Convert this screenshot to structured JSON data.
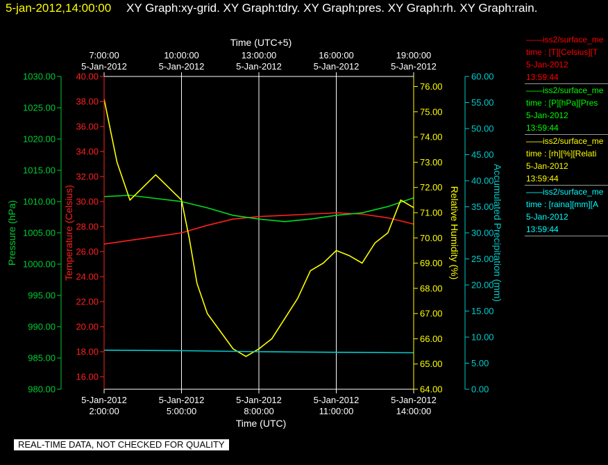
{
  "header": {
    "timestamp": "5-jan-2012,14:00:00",
    "titles": "XY Graph:xy-grid.  XY Graph:tdry.  XY Graph:pres.  XY Graph:rh.  XY Graph:rain."
  },
  "legend": [
    {
      "line1": "iss2/surface_me",
      "line2": "time : [T][Celsius][T",
      "line3": "5-Jan-2012",
      "line4": "13:59:44",
      "color": "#ff0000"
    },
    {
      "line1": "iss2/surface_me",
      "line2": "time : [P][hPa][Pres",
      "line3": "5-Jan-2012",
      "line4": "13:59:44",
      "color": "#00ff00"
    },
    {
      "line1": "iss2/surface_me",
      "line2": "time : [rh][%][Relati",
      "line3": "5-Jan-2012",
      "line4": "13:59:44",
      "color": "#ffff00"
    },
    {
      "line1": "iss2/surface_me",
      "line2": "time : [raina][mm][A",
      "line3": "5-Jan-2012",
      "line4": "13:59:44",
      "color": "#00ffff"
    }
  ],
  "footer": "REAL-TIME DATA, NOT CHECKED FOR QUALITY",
  "chart_data": {
    "type": "line",
    "title": "",
    "x_axis_bottom": {
      "label": "Time (UTC)",
      "ticks": [
        {
          "date": "5-Jan-2012",
          "time": "2:00:00"
        },
        {
          "date": "5-Jan-2012",
          "time": "5:00:00"
        },
        {
          "date": "5-Jan-2012",
          "time": "8:00:00"
        },
        {
          "date": "5-Jan-2012",
          "time": "11:00:00"
        },
        {
          "date": "5-Jan-2012",
          "time": "14:00:00"
        }
      ]
    },
    "x_axis_top": {
      "label": "Time (UTC+5)",
      "ticks": [
        {
          "time": "7:00:00",
          "date": "5-Jan-2012"
        },
        {
          "time": "10:00:00",
          "date": "5-Jan-2012"
        },
        {
          "time": "13:00:00",
          "date": "5-Jan-2012"
        },
        {
          "time": "16:00:00",
          "date": "5-Jan-2012"
        },
        {
          "time": "19:00:00",
          "date": "5-Jan-2012"
        }
      ]
    },
    "x_range_hours": [
      2,
      14
    ],
    "grid": true,
    "axes": [
      {
        "id": "pres",
        "label": "Pressure (hPa)",
        "color": "#00cc33",
        "min": 980,
        "max": 1030,
        "step": 5,
        "decimals": 2
      },
      {
        "id": "temp",
        "label": "Temperature (Celsius)",
        "color": "#ff2020",
        "min": 15,
        "max": 40,
        "step": 2,
        "first": 16,
        "decimals": 2
      },
      {
        "id": "rh",
        "label": "Relative Humidity (%)",
        "color": "#ffff00",
        "min": 64,
        "max": 76.4,
        "step": 1,
        "first": 64,
        "last": 76,
        "decimals": 2
      },
      {
        "id": "rain",
        "label": "Accumulated Precipitation (mm)",
        "color": "#00cccc",
        "min": 0,
        "max": 60,
        "step": 5,
        "decimals": 2
      }
    ],
    "series": [
      {
        "axis": "temp",
        "color": "#ff2020",
        "points": [
          [
            2.0,
            26.6
          ],
          [
            3.0,
            26.9
          ],
          [
            4.0,
            27.2
          ],
          [
            5.0,
            27.5
          ],
          [
            6.0,
            28.1
          ],
          [
            7.0,
            28.6
          ],
          [
            8.0,
            28.8
          ],
          [
            9.0,
            28.9
          ],
          [
            10.0,
            29.0
          ],
          [
            11.0,
            29.1
          ],
          [
            12.0,
            29.0
          ],
          [
            13.0,
            28.7
          ],
          [
            14.0,
            28.2
          ]
        ]
      },
      {
        "axis": "pres",
        "color": "#00dd22",
        "points": [
          [
            2.0,
            1010.8
          ],
          [
            3.0,
            1011.0
          ],
          [
            4.0,
            1010.5
          ],
          [
            5.0,
            1010.0
          ],
          [
            6.0,
            1009.0
          ],
          [
            7.0,
            1007.8
          ],
          [
            8.0,
            1007.2
          ],
          [
            9.0,
            1006.8
          ],
          [
            10.0,
            1007.2
          ],
          [
            11.0,
            1007.8
          ],
          [
            12.0,
            1008.2
          ],
          [
            13.0,
            1009.2
          ],
          [
            14.0,
            1010.6
          ]
        ]
      },
      {
        "axis": "rh",
        "color": "#ffff00",
        "points": [
          [
            2.0,
            75.5
          ],
          [
            2.5,
            73.0
          ],
          [
            3.0,
            71.5
          ],
          [
            3.5,
            72.0
          ],
          [
            4.0,
            72.5
          ],
          [
            4.5,
            72.0
          ],
          [
            5.0,
            71.5
          ],
          [
            5.3,
            70.0
          ],
          [
            5.6,
            68.2
          ],
          [
            6.0,
            67.0
          ],
          [
            6.5,
            66.3
          ],
          [
            7.0,
            65.6
          ],
          [
            7.5,
            65.3
          ],
          [
            8.0,
            65.6
          ],
          [
            8.5,
            66.0
          ],
          [
            9.0,
            66.8
          ],
          [
            9.5,
            67.6
          ],
          [
            10.0,
            68.7
          ],
          [
            10.5,
            69.0
          ],
          [
            11.0,
            69.5
          ],
          [
            11.5,
            69.3
          ],
          [
            12.0,
            69.0
          ],
          [
            12.5,
            69.8
          ],
          [
            13.0,
            70.2
          ],
          [
            13.5,
            71.5
          ],
          [
            14.0,
            71.2
          ]
        ]
      },
      {
        "axis": "rain",
        "color": "#00cccc",
        "points": [
          [
            2.0,
            7.5
          ],
          [
            5.0,
            7.4
          ],
          [
            8.0,
            7.2
          ],
          [
            11.0,
            7.1
          ],
          [
            14.0,
            7.0
          ]
        ]
      }
    ]
  }
}
